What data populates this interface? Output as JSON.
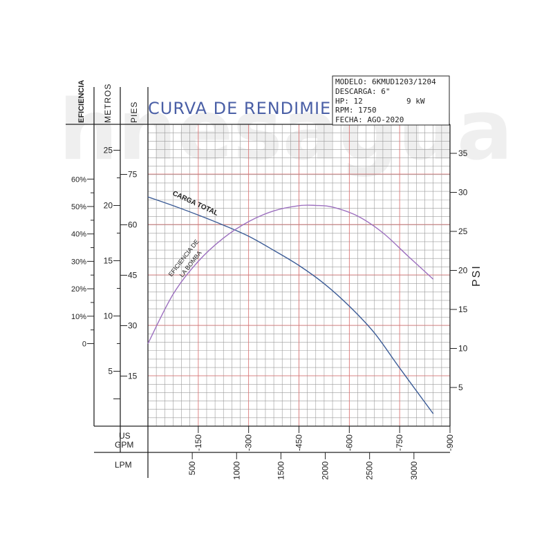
{
  "chart_data": {
    "type": "line",
    "title": "CURVA DE RENDIMIENTO",
    "watermark": "hnesagua",
    "info_box": {
      "modelo": "MODELO: 6KMUD1203/1204",
      "descarga": "DESCARGA: 6\"",
      "hp": "HP: 12",
      "kw": "9 kW",
      "rpm": "RPM: 1750",
      "fecha": "FECHA: AGO-2020"
    },
    "axes": {
      "eficiencia": {
        "label": "EFICIENCIA",
        "ticks": [
          "60%",
          "50%",
          "40%",
          "30%",
          "20%",
          "10%",
          "0"
        ],
        "range": [
          0,
          60
        ]
      },
      "metros": {
        "label": "METROS",
        "ticks": [
          "25",
          "20",
          "15",
          "10",
          "5"
        ],
        "range": [
          0,
          25
        ]
      },
      "pies": {
        "label": "PIES",
        "ticks": [
          "75",
          "60",
          "45",
          "30",
          "15"
        ],
        "range": [
          0,
          75
        ]
      },
      "psi": {
        "label": "PSI",
        "ticks": [
          "35",
          "30",
          "25",
          "20",
          "15",
          "10",
          "5"
        ],
        "range": [
          0,
          35
        ]
      },
      "gpm": {
        "label": "US GPM",
        "ticks": [
          "150",
          "300",
          "450",
          "600",
          "750",
          "900"
        ],
        "range": [
          0,
          900
        ]
      },
      "lpm": {
        "label": "LPM",
        "ticks": [
          "500",
          "1000",
          "1500",
          "2000",
          "2500",
          "3000"
        ],
        "range": [
          0,
          3400
        ]
      }
    },
    "grid": true,
    "series": [
      {
        "name": "CARGA TOTAL",
        "unit": "pies",
        "color": "#3b5b96",
        "points": [
          [
            0,
            68.3
          ],
          [
            75,
            65.7
          ],
          [
            150,
            62.9
          ],
          [
            225,
            59.9
          ],
          [
            300,
            56.6
          ],
          [
            375,
            52.4
          ],
          [
            450,
            47.9
          ],
          [
            525,
            42.5
          ],
          [
            600,
            35.8
          ],
          [
            675,
            27.8
          ],
          [
            750,
            17.4
          ],
          [
            850,
            3.8
          ]
        ]
      },
      {
        "name": "EFICIENCIA DE LA BOMBA",
        "unit": "%",
        "color": "#9c6fbf",
        "points": [
          [
            0,
            0
          ],
          [
            75,
            18
          ],
          [
            150,
            30
          ],
          [
            225,
            38.5
          ],
          [
            300,
            44.5
          ],
          [
            375,
            48.4
          ],
          [
            450,
            50.3
          ],
          [
            500,
            50.4
          ],
          [
            550,
            49.8
          ],
          [
            625,
            46.5
          ],
          [
            700,
            40.4
          ],
          [
            775,
            31.9
          ],
          [
            850,
            23.5
          ]
        ]
      }
    ]
  }
}
